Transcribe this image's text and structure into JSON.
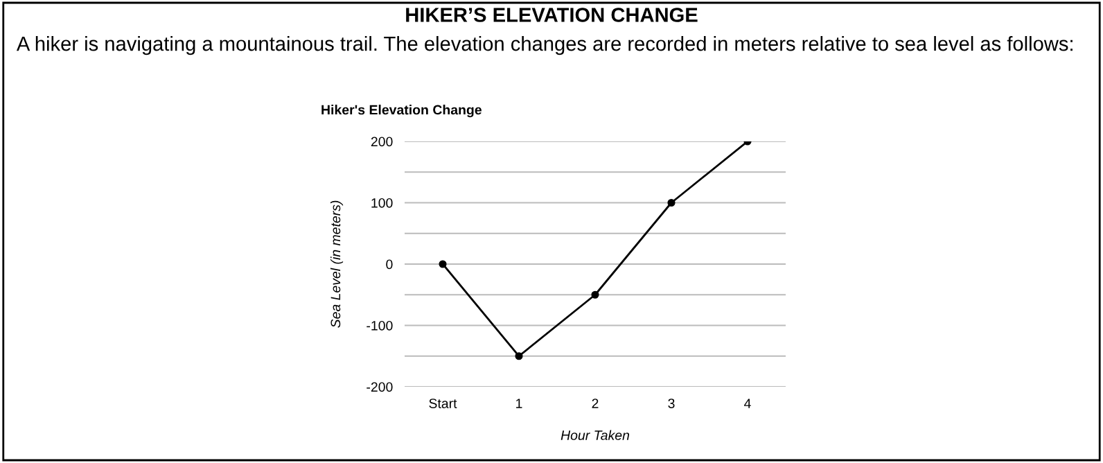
{
  "chart_data": {
    "type": "line",
    "title": "Hiker's Elevation Change",
    "xlabel": "Hour Taken",
    "ylabel": "Sea Level (in meters)",
    "annotations": [
      "HIKER’S ELEVATION CHANGE",
      "A hiker is navigating a mountainous trail. The elevation changes are recorded in meters relative to sea level as follows:"
    ],
    "categories": [
      "Start",
      "1",
      "2",
      "3",
      "4"
    ],
    "series": [
      {
        "color": "#000000",
        "values": [
          0,
          -150,
          -50,
          100,
          200
        ]
      }
    ],
    "ylim": [
      -200,
      200
    ],
    "yticks": [
      -200,
      {
        "value": -150,
        "label": null
      },
      -100,
      {
        "value": -50,
        "label": null
      },
      0,
      {
        "value": 50,
        "label": null
      },
      100,
      {
        "value": 150,
        "label": null
      },
      200
    ],
    "grid": "y",
    "marker": "circle",
    "line_style": "solid",
    "legend": false
  }
}
